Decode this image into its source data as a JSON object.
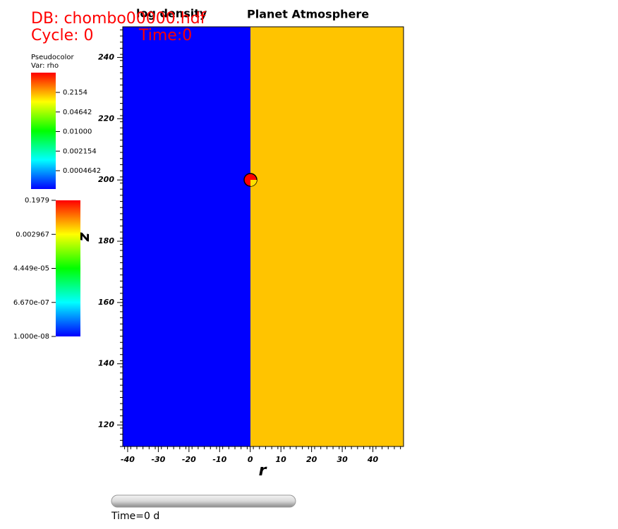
{
  "header": {
    "database": "DB: chombo00000.hdf",
    "cycle": "Cycle: 0",
    "time": "Time:0"
  },
  "legend": {
    "plot_type": "Pseudocolor",
    "variable": "Var: rho",
    "bar1_labels": [
      "0.2154",
      "0.04642",
      "0.01000",
      "0.002154",
      "0.0004642"
    ],
    "bar2_labels": [
      "0.1979",
      "0.002967",
      "4.449e-05",
      "6.670e-07",
      "1.000e-08"
    ]
  },
  "plot": {
    "title_left": "log density",
    "title_right": "Planet Atmosphere",
    "x_label": "r",
    "y_label": "z",
    "xlim": [
      -41.6,
      50
    ],
    "ylim": [
      113,
      250
    ],
    "xticks": [
      -40,
      -30,
      -20,
      -10,
      0,
      10,
      20,
      30,
      40
    ],
    "yticks": [
      120,
      140,
      160,
      180,
      200,
      220,
      240
    ]
  },
  "slider": {
    "label": "Time=0 d"
  }
}
